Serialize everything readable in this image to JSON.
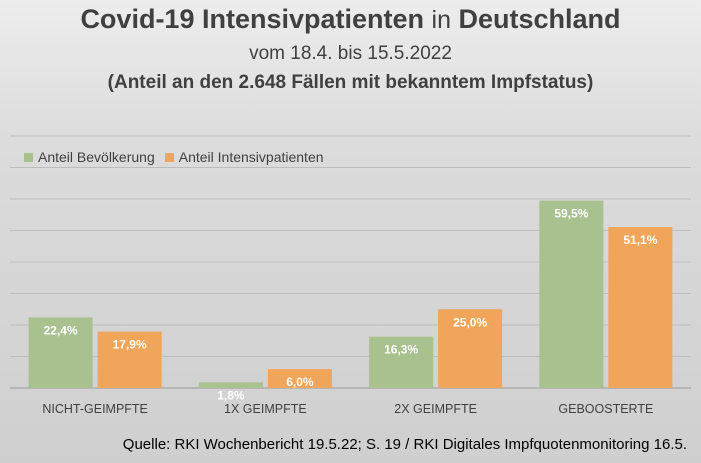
{
  "header": {
    "title_bold_1": "Covid-19 Intensivpatienten",
    "title_thin": "in",
    "title_bold_2": "Deutschland",
    "subtitle": "vom 18.4. bis 15.5.2022",
    "subtitle2": "(Anteil an den 2.648 Fällen mit bekanntem Impfstatus)"
  },
  "colors": {
    "bevoelkerung": "#a9c08f",
    "intensiv": "#f0a55a",
    "grid": "#bdbdbd",
    "axis": "#9a9a9a"
  },
  "chart_data": {
    "type": "bar",
    "categories": [
      "NICHT-GEIMPFTE",
      "1X GEIMPFTE",
      "2X GEIMPFTE",
      "GEBOOSTERTE"
    ],
    "series": [
      {
        "name": "Anteil Bevölkerung",
        "values": [
          22.4,
          1.8,
          16.3,
          59.5
        ],
        "labels": [
          "22,4%",
          "1,8%",
          "16,3%",
          "59,5%"
        ]
      },
      {
        "name": "Anteil Intensivpatienten",
        "values": [
          17.9,
          6.0,
          25.0,
          51.1
        ],
        "labels": [
          "17,9%",
          "6,0%",
          "25,0%",
          "51,1%"
        ]
      }
    ],
    "ylim": [
      0,
      80
    ],
    "grid": true,
    "legend_position": "top-left"
  },
  "source": "Quelle: RKI Wochenbericht 19.5.22; S. 19 / RKI Digitales Impfquotenmonitoring 16.5."
}
